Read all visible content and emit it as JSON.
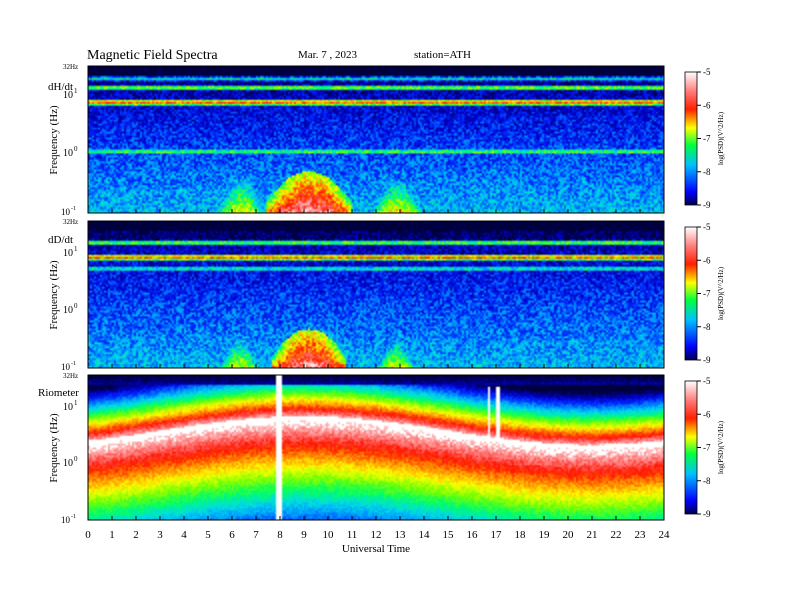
{
  "header": {
    "title": "Magnetic  Field  Spectra",
    "date": "Mar. 7  , 2023",
    "station": "station=ATH"
  },
  "chart_data": {
    "type": "heatmap",
    "xlabel": "Universal Time",
    "x_range": [
      0,
      24
    ],
    "x_ticks": [
      0,
      1,
      2,
      3,
      4,
      5,
      6,
      7,
      8,
      9,
      10,
      11,
      12,
      13,
      14,
      15,
      16,
      17,
      18,
      19,
      20,
      21,
      22,
      23,
      24
    ],
    "x_tick_labels": [
      "0",
      "1",
      "2",
      "3",
      "4",
      "5",
      "6",
      "7",
      "8",
      "9",
      "10",
      "11",
      "12",
      "13",
      "14",
      "15",
      "16",
      "17",
      "18",
      "19",
      "20",
      "21",
      "22",
      "23",
      "24"
    ],
    "ylabel": "Frequency  (Hz)",
    "y_scale": "log",
    "y_range_hz": [
      0.1,
      32
    ],
    "y_tick_labels": [
      "32Hz",
      "10",
      "1",
      "-1",
      "0",
      "1"
    ],
    "colorbar": {
      "label": "log(PSD)(V^2/Hz)",
      "range": [
        -9,
        -5
      ],
      "ticks": [
        -9,
        -8,
        -7,
        -6,
        -5
      ],
      "tick_labels": [
        "-9",
        "-8",
        "-7",
        "-6",
        "-5"
      ],
      "colors": [
        "#000060",
        "#0000ff",
        "#00c8ff",
        "#00ff00",
        "#ffff00",
        "#ff0000",
        "#ffffff"
      ]
    },
    "panels": [
      {
        "name": "dH/dt",
        "top_label": "32Hz",
        "tick_10": "10",
        "tick_10_exp": "1",
        "tick_1": "10",
        "tick_1_exp": "0",
        "tick_01": "10",
        "tick_01_exp": "-1",
        "features": [
          {
            "kind": "band",
            "f_hz": 7.8,
            "level": -5.8
          },
          {
            "kind": "band",
            "f_hz": 14,
            "level": -6.8
          },
          {
            "kind": "band",
            "f_hz": 20,
            "level": -7.5
          },
          {
            "kind": "band",
            "f_hz": 1.1,
            "level": -7.0
          },
          {
            "kind": "burst",
            "t_start": 7.6,
            "t_end": 10.8,
            "f_max_hz": 0.5,
            "level": -5.0
          },
          {
            "kind": "burst",
            "t_start": 12.0,
            "t_end": 13.8,
            "f_max_hz": 0.35,
            "level": -6.3
          },
          {
            "kind": "burst",
            "t_start": 5.5,
            "t_end": 7.2,
            "f_max_hz": 0.4,
            "level": -6.4
          }
        ]
      },
      {
        "name": "dD/dt",
        "top_label": "32Hz",
        "tick_10": "10",
        "tick_10_exp": "1",
        "tick_1": "10",
        "tick_1_exp": "0",
        "tick_01": "10",
        "tick_01_exp": "-1",
        "features": [
          {
            "kind": "band",
            "f_hz": 7.8,
            "level": -5.8
          },
          {
            "kind": "band",
            "f_hz": 14,
            "level": -6.9
          },
          {
            "kind": "band",
            "f_hz": 5,
            "level": -7.4
          },
          {
            "kind": "burst",
            "t_start": 7.8,
            "t_end": 10.6,
            "f_max_hz": 0.45,
            "level": -5.0
          },
          {
            "kind": "burst",
            "t_start": 12.2,
            "t_end": 13.5,
            "f_max_hz": 0.3,
            "level": -6.4
          },
          {
            "kind": "burst",
            "t_start": 5.6,
            "t_end": 7.0,
            "f_max_hz": 0.35,
            "level": -6.5
          }
        ]
      },
      {
        "name": "Riometer",
        "top_label": "32Hz",
        "tick_10": "10",
        "tick_10_exp": "1",
        "tick_1": "10",
        "tick_1_exp": "0",
        "tick_01": "10",
        "tick_01_exp": "-1",
        "features": [
          {
            "kind": "gap",
            "t_start": 7.8,
            "t_end": 8.05
          },
          {
            "kind": "spike",
            "t": 16.7
          },
          {
            "kind": "spike",
            "t": 17.1
          }
        ]
      }
    ]
  }
}
